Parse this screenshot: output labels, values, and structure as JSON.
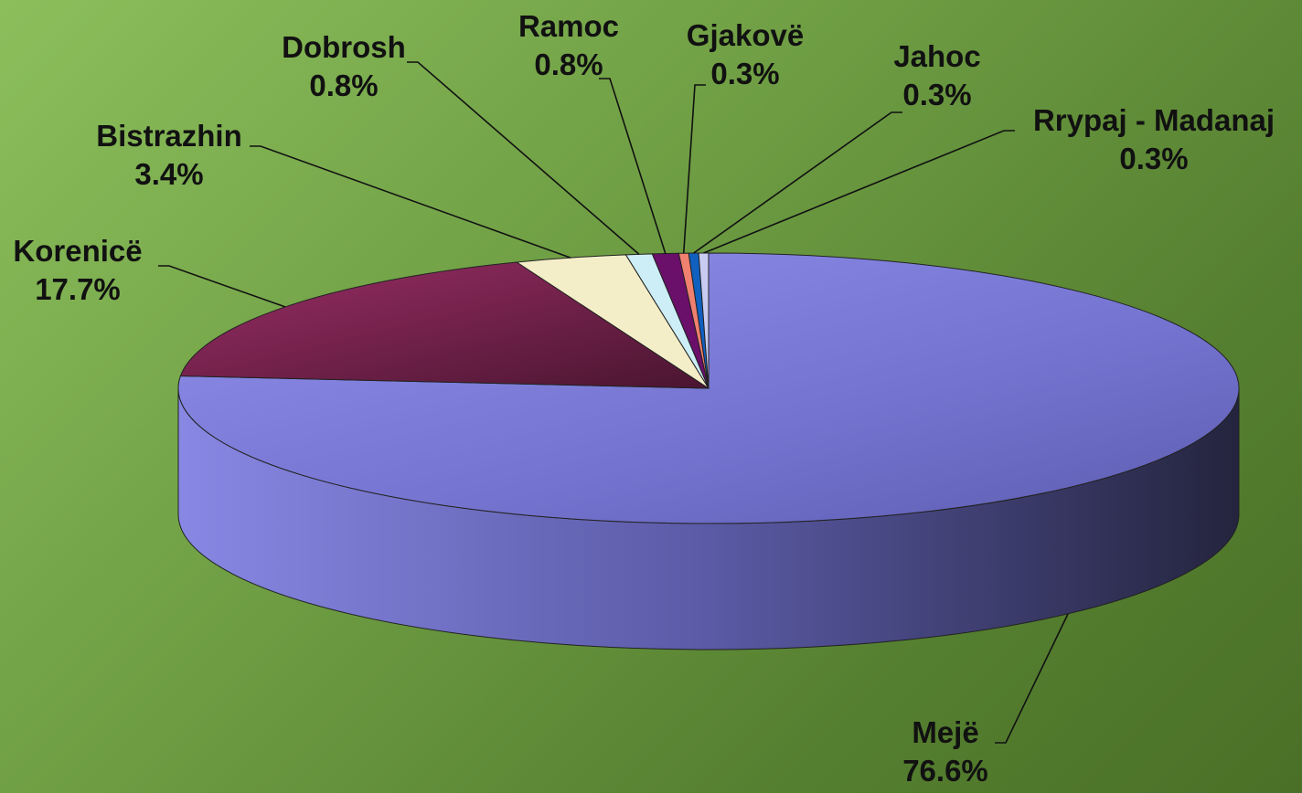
{
  "chart_data": {
    "type": "pie",
    "style": "3d",
    "title": "",
    "slices": [
      {
        "name": "Mejë",
        "value": 76.6,
        "label": "76.6%",
        "color": "#8080e0",
        "side_color": "#5a5aa8"
      },
      {
        "name": "Korenicë",
        "value": 17.7,
        "label": "17.7%",
        "color": "#8c2a5c",
        "side_color": "#5e1c3e"
      },
      {
        "name": "Bistrazhin",
        "value": 3.4,
        "label": "3.4%",
        "color": "#f4eec8",
        "side_color": "#bdb792"
      },
      {
        "name": "Dobrosh",
        "value": 0.8,
        "label": "0.8%",
        "color": "#cdeef6",
        "side_color": "#98bcc4"
      },
      {
        "name": "Ramoc",
        "value": 0.8,
        "label": "0.8%",
        "color": "#6a0f6a",
        "side_color": "#440844"
      },
      {
        "name": "Gjakovë",
        "value": 0.3,
        "label": "0.3%",
        "color": "#f08070",
        "side_color": "#b85e52"
      },
      {
        "name": "Jahoc",
        "value": 0.3,
        "label": "0.3%",
        "color": "#1060c0",
        "side_color": "#0a4288"
      },
      {
        "name": "Rrypaj - Madanaj",
        "value": 0.3,
        "label": "0.3%",
        "color": "#c8ccf2",
        "side_color": "#9296c0"
      }
    ]
  }
}
